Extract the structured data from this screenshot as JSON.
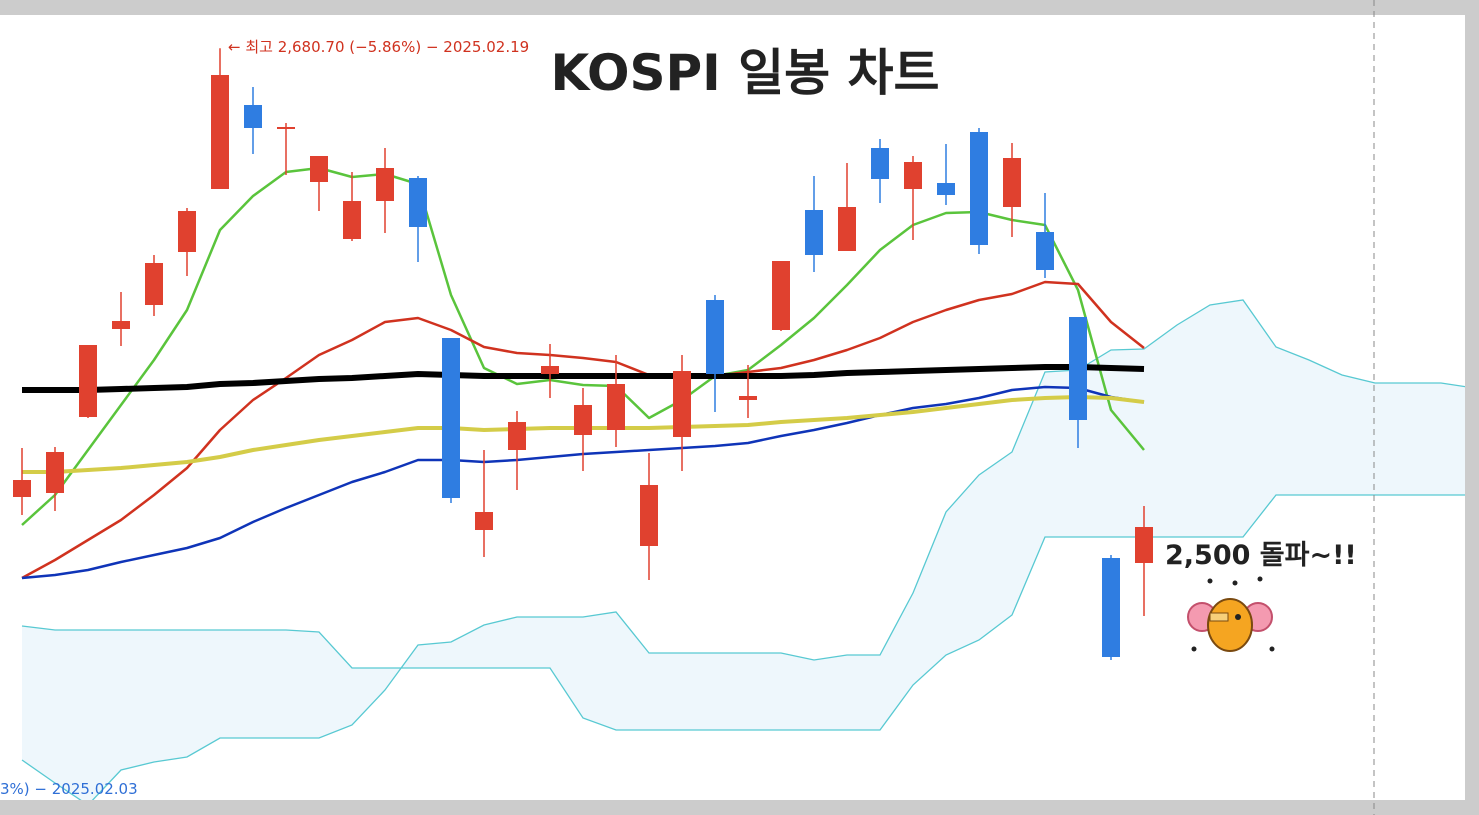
{
  "chart_data": {
    "type": "candlestick",
    "title": "KOSPI 일봉 차트",
    "ylim": [
      2374,
      2700
    ],
    "up_color": "#e0412f",
    "down_color": "#2f7de1",
    "open": [
      2501.2,
      2502.8,
      2533.2,
      2568.4,
      2578,
      2599.2,
      2624.4,
      2658,
      2648.4,
      2627.2,
      2604.4,
      2619.6,
      2628.8,
      2564.8,
      2488,
      2520,
      2550.4,
      2526,
      2528,
      2481.6,
      2525.2,
      2580,
      2540,
      2568,
      2616,
      2599.6,
      2640.8,
      2624.4,
      2626.8,
      2647.2,
      2617.2,
      2607.2,
      2573.2,
      2476.8,
      2474.8
    ],
    "high": [
      2520.8,
      2521.2,
      2562,
      2583.2,
      2598,
      2616.8,
      2680.7,
      2665.2,
      2650.8,
      2637.6,
      2631.2,
      2640.8,
      2629.6,
      2564.8,
      2520,
      2535.6,
      2562.4,
      2544.8,
      2558,
      2518.8,
      2558,
      2582,
      2554,
      2595.6,
      2629.6,
      2634.8,
      2644.4,
      2637.6,
      2642.4,
      2648.8,
      2642.8,
      2622.8,
      2573.2,
      2478,
      2497.6
    ],
    "low": [
      2494,
      2495.6,
      2532.8,
      2561.6,
      2573.6,
      2589.6,
      2624.4,
      2638.4,
      2630,
      2615.6,
      2603.6,
      2606.8,
      2595.2,
      2498.8,
      2477.2,
      2504,
      2540.8,
      2511.6,
      2521.2,
      2468,
      2511.6,
      2535.2,
      2532.8,
      2567.6,
      2591.2,
      2599.6,
      2618.8,
      2604,
      2618,
      2598.4,
      2605.2,
      2588.8,
      2520.8,
      2436,
      2453.6
    ],
    "close": [
      2508,
      2519.2,
      2562,
      2571.6,
      2594.8,
      2615.6,
      2670,
      2648.8,
      2649.2,
      2637.6,
      2619.6,
      2632.8,
      2609.2,
      2500.8,
      2495.2,
      2531.2,
      2553.6,
      2538,
      2546.4,
      2506,
      2551.6,
      2550.4,
      2541.6,
      2595.6,
      2598,
      2617.2,
      2628.4,
      2635.2,
      2622,
      2602,
      2636.8,
      2592,
      2532,
      2437.2,
      2489.2
    ],
    "series": [
      {
        "color": "#5ac43c",
        "width": 2.5,
        "values": [
          2490,
          2502,
          2520,
          2538,
          2556,
          2576,
          2608,
          2621.6,
          2631.2,
          2632.8,
          2629.2,
          2630.4,
          2626.4,
          2582,
          2552.8,
          2546.4,
          2548,
          2546,
          2545.6,
          2532.8,
          2540,
          2549.6,
          2552,
          2562,
          2572.8,
          2586,
          2600,
          2610,
          2614.8,
          2615.2,
          2612,
          2610,
          2584,
          2536,
          2520
        ]
      },
      {
        "color": "#d0321f",
        "width": 2.5,
        "values": [
          2468.8,
          2476,
          2484,
          2492,
          2502,
          2512.8,
          2528,
          2540,
          2548.8,
          2558,
          2564,
          2571.2,
          2572.8,
          2568,
          2561.2,
          2558.8,
          2558,
          2556.8,
          2555.2,
          2550,
          2549.2,
          2549.6,
          2551.2,
          2552.8,
          2556,
          2560,
          2564.8,
          2571.2,
          2576,
          2580,
          2582.4,
          2587.2,
          2586.4,
          2571.2,
          2560.8
        ]
      },
      {
        "color": "#0f34b8",
        "width": 2.5,
        "values": [
          2468.8,
          2470,
          2472,
          2475.2,
          2478,
          2480.8,
          2484.8,
          2491.2,
          2496.8,
          2502,
          2507.2,
          2511.2,
          2516,
          2516,
          2515.2,
          2516,
          2517.2,
          2518.4,
          2519.2,
          2520,
          2520.8,
          2521.6,
          2522.8,
          2525.6,
          2528,
          2530.8,
          2534,
          2536.8,
          2538.4,
          2540.8,
          2544,
          2545.2,
          2544.8,
          2541.2,
          2539.2
        ]
      },
      {
        "color": "#d4cc48",
        "width": 4,
        "values": [
          2511.2,
          2511.2,
          2512,
          2512.8,
          2514,
          2515.2,
          2517.2,
          2520,
          2522,
          2524,
          2525.6,
          2527.2,
          2528.8,
          2528.8,
          2528,
          2528.4,
          2528.8,
          2528.8,
          2528.8,
          2528.8,
          2529.2,
          2529.6,
          2530,
          2531.2,
          2532,
          2532.8,
          2534,
          2535.2,
          2536.8,
          2538.4,
          2540,
          2540.8,
          2541.2,
          2540.8,
          2539.2
        ]
      },
      {
        "color": "#000000",
        "width": 6,
        "values": [
          2544,
          2544,
          2544,
          2544.4,
          2544.8,
          2545.2,
          2546.4,
          2546.8,
          2547.6,
          2548.4,
          2548.8,
          2549.6,
          2550.4,
          2550,
          2549.6,
          2549.6,
          2549.6,
          2549.6,
          2549.6,
          2549.6,
          2549.6,
          2549.6,
          2549.6,
          2549.6,
          2550,
          2550.8,
          2551.2,
          2551.6,
          2552,
          2552.4,
          2552.8,
          2553.2,
          2553.2,
          2552.8,
          2552.4
        ]
      }
    ],
    "cloud": {
      "color": "#58c9d2",
      "fill": "#eef7fc",
      "lines": [
        [
          2449.6,
          2448,
          2448,
          2448,
          2448,
          2448,
          2448,
          2448,
          2448,
          2447.2,
          2432.8,
          2432.8,
          2432.8,
          2432.8,
          2432.8,
          2432.8,
          2432.8,
          2412.8,
          2408,
          2408,
          2408,
          2408,
          2408,
          2408,
          2408,
          2408,
          2408,
          2426,
          2438,
          2444,
          2454,
          2485.2,
          2485.2,
          2485.2,
          2485.2,
          2485.2,
          2485.2,
          2485.2,
          2502,
          2502,
          2502,
          2502,
          2502,
          2502,
          2502
        ],
        [
          2396,
          2386.8,
          2378,
          2392,
          2395.2,
          2397.2,
          2404.8,
          2404.8,
          2404.8,
          2404.8,
          2410,
          2424,
          2442,
          2443.2,
          2450,
          2453.2,
          2453.2,
          2453.2,
          2455.2,
          2438.8,
          2438.8,
          2438.8,
          2438.8,
          2438.8,
          2436,
          2438,
          2438,
          2462.8,
          2495.2,
          2510,
          2519.2,
          2551.2,
          2552,
          2560,
          2560.4,
          2570,
          2578,
          2580,
          2561.2,
          2556,
          2550,
          2546.8,
          2546.8,
          2546.8,
          2544.8
        ]
      ]
    },
    "annotations": [
      {
        "text": "← 최고 2,680.70 (−5.86%) − 2025.02.19",
        "color": "#d0321f"
      },
      {
        "text": "3%) − 2025.02.03",
        "color": "#2f6fd6"
      },
      {
        "text": "2,500 돌파~!!",
        "color": "#222222"
      }
    ]
  }
}
